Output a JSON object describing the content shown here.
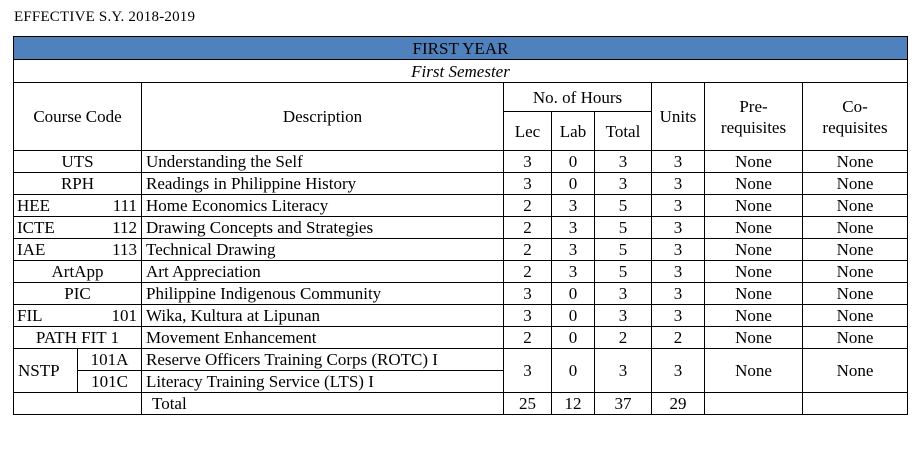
{
  "effective": "EFFECTIVE S.Y. 2018-2019",
  "year": "FIRST YEAR",
  "semester": "First Semester",
  "headers": {
    "course_code": "Course Code",
    "description": "Description",
    "hours": "No. of Hours",
    "lec": "Lec",
    "lab": "Lab",
    "total": "Total",
    "units": "Units",
    "prereq_1": "Pre-",
    "prereq_2": "requisites",
    "coreq_1": "Co-",
    "coreq_2": "requisites"
  },
  "courses": [
    {
      "code": "UTS",
      "num": "",
      "desc": "Understanding the Self",
      "lec": "3",
      "lab": "0",
      "total": "3",
      "units": "3",
      "pre": "None",
      "co": "None"
    },
    {
      "code": "RPH",
      "num": "",
      "desc": "Readings in Philippine History",
      "lec": "3",
      "lab": "0",
      "total": "3",
      "units": "3",
      "pre": "None",
      "co": "None"
    },
    {
      "code": "HEE",
      "num": "111",
      "desc": "Home Economics Literacy",
      "lec": "2",
      "lab": "3",
      "total": "5",
      "units": "3",
      "pre": "None",
      "co": "None"
    },
    {
      "code": "ICTE",
      "num": "112",
      "desc": "Drawing Concepts and Strategies",
      "lec": "2",
      "lab": "3",
      "total": "5",
      "units": "3",
      "pre": "None",
      "co": "None"
    },
    {
      "code": "IAE",
      "num": "113",
      "desc": "Technical Drawing",
      "lec": "2",
      "lab": "3",
      "total": "5",
      "units": "3",
      "pre": "None",
      "co": "None"
    },
    {
      "code": "ArtApp",
      "num": "",
      "desc": "Art Appreciation",
      "lec": "2",
      "lab": "3",
      "total": "5",
      "units": "3",
      "pre": "None",
      "co": "None"
    },
    {
      "code": "PIC",
      "num": "",
      "desc": "Philippine Indigenous Community",
      "lec": "3",
      "lab": "0",
      "total": "3",
      "units": "3",
      "pre": "None",
      "co": "None"
    },
    {
      "code": "FIL",
      "num": "101",
      "desc": "Wika, Kultura at Lipunan",
      "lec": "3",
      "lab": "0",
      "total": "3",
      "units": "3",
      "pre": "None",
      "co": "None"
    },
    {
      "code": "PATH FIT 1",
      "num": "",
      "desc": "Movement Enhancement",
      "lec": "2",
      "lab": "0",
      "total": "2",
      "units": "2",
      "pre": "None",
      "co": "None"
    }
  ],
  "nstp": {
    "code": "NSTP",
    "num_a": "101A",
    "desc_a": "Reserve Officers Training Corps (ROTC) I",
    "num_c": "101C",
    "desc_c": "Literacy Training Service (LTS) I",
    "lec": "3",
    "lab": "0",
    "total": "3",
    "units": "3",
    "pre": "None",
    "co": "None"
  },
  "totals": {
    "label": "Total",
    "lec": "25",
    "lab": "12",
    "total": "37",
    "units": "29"
  }
}
